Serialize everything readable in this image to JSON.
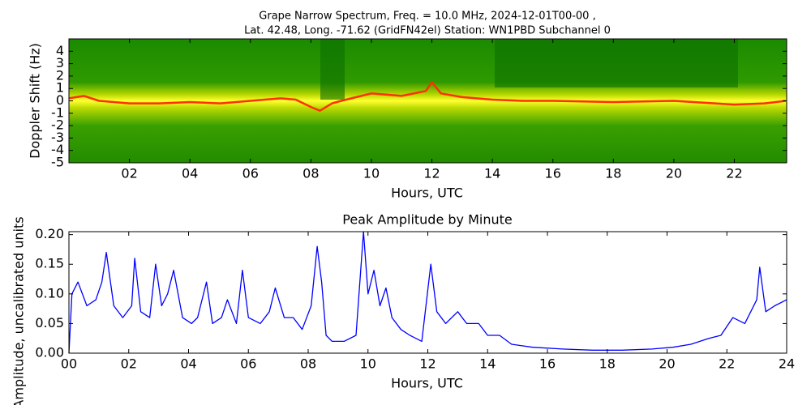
{
  "chart_data": [
    {
      "type": "spectrogram",
      "title": [
        "Grape Narrow Spectrum, Freq. = 10.0 MHz, 2024-12-01T00-00 ,",
        "Lat.  42.48, Long. -71.62 (GridFN42el) Station: WN1PBD Subchannel 0"
      ],
      "xlabel": "Hours, UTC",
      "ylabel": "Doppler Shift (Hz)",
      "xlim": [
        0,
        23.73
      ],
      "ylim": [
        -5,
        5
      ],
      "xticks": [
        {
          "value": 2,
          "label": "02"
        },
        {
          "value": 4,
          "label": "04"
        },
        {
          "value": 6,
          "label": "06"
        },
        {
          "value": 8,
          "label": "08"
        },
        {
          "value": 10,
          "label": "10"
        },
        {
          "value": 12,
          "label": "12"
        },
        {
          "value": 14,
          "label": "14"
        },
        {
          "value": 16,
          "label": "16"
        },
        {
          "value": 18,
          "label": "18"
        },
        {
          "value": 20,
          "label": "20"
        },
        {
          "value": 22,
          "label": "22"
        }
      ],
      "yticks": [
        -5,
        -4,
        -3,
        -2,
        -1,
        0,
        1,
        2,
        3,
        4
      ],
      "x": [
        0,
        0.5,
        1,
        2,
        3,
        4,
        5,
        6,
        7,
        7.5,
        8,
        8.3,
        8.7,
        9,
        10,
        11,
        11.8,
        12,
        12.3,
        13,
        14,
        15,
        16,
        18,
        20,
        22,
        23,
        23.7
      ],
      "values": [
        0.2,
        0.4,
        0.0,
        -0.2,
        -0.2,
        -0.1,
        -0.2,
        0.0,
        0.2,
        0.1,
        -0.5,
        -0.8,
        -0.2,
        0.0,
        0.6,
        0.4,
        0.8,
        1.5,
        0.6,
        0.3,
        0.1,
        0.0,
        0.0,
        -0.1,
        0.0,
        -0.3,
        -0.2,
        0.0
      ],
      "color": "#ff3000"
    },
    {
      "type": "line",
      "title": "Peak Amplitude by Minute",
      "xlabel": "Hours, UTC",
      "ylabel": "Amplitude, uncalibrated units",
      "xlim": [
        0,
        24
      ],
      "ylim": [
        0,
        0.205
      ],
      "xticks": [
        {
          "value": 0,
          "label": "00"
        },
        {
          "value": 2,
          "label": "02"
        },
        {
          "value": 4,
          "label": "04"
        },
        {
          "value": 6,
          "label": "06"
        },
        {
          "value": 8,
          "label": "08"
        },
        {
          "value": 10,
          "label": "10"
        },
        {
          "value": 12,
          "label": "12"
        },
        {
          "value": 14,
          "label": "14"
        },
        {
          "value": 16,
          "label": "16"
        },
        {
          "value": 18,
          "label": "18"
        },
        {
          "value": 20,
          "label": "20"
        },
        {
          "value": 22,
          "label": "22"
        },
        {
          "value": 24,
          "label": "24"
        }
      ],
      "yticks": [
        {
          "value": 0,
          "label": "0.00"
        },
        {
          "value": 0.05,
          "label": "0.05"
        },
        {
          "value": 0.1,
          "label": "0.10"
        },
        {
          "value": 0.15,
          "label": "0.15"
        },
        {
          "value": 0.2,
          "label": "0.20"
        }
      ],
      "x": [
        0,
        0.1,
        0.3,
        0.6,
        0.9,
        1.1,
        1.25,
        1.5,
        1.8,
        2.1,
        2.2,
        2.4,
        2.7,
        2.9,
        3.1,
        3.3,
        3.5,
        3.8,
        4.1,
        4.3,
        4.6,
        4.8,
        5.1,
        5.3,
        5.6,
        5.8,
        6.0,
        6.4,
        6.7,
        6.9,
        7.2,
        7.5,
        7.8,
        8.1,
        8.3,
        8.45,
        8.6,
        8.8,
        9.2,
        9.6,
        9.85,
        10.0,
        10.2,
        10.4,
        10.6,
        10.8,
        11.1,
        11.4,
        11.8,
        12.1,
        12.3,
        12.6,
        13.0,
        13.3,
        13.7,
        14.0,
        14.4,
        14.8,
        15.5,
        16.5,
        17.5,
        18.5,
        19.5,
        20.2,
        20.8,
        21.4,
        21.8,
        22.2,
        22.6,
        23.0,
        23.1,
        23.3,
        23.6,
        24
      ],
      "values": [
        0.0,
        0.1,
        0.12,
        0.08,
        0.09,
        0.12,
        0.17,
        0.08,
        0.06,
        0.08,
        0.16,
        0.07,
        0.06,
        0.15,
        0.08,
        0.1,
        0.14,
        0.06,
        0.05,
        0.06,
        0.12,
        0.05,
        0.06,
        0.09,
        0.05,
        0.14,
        0.06,
        0.05,
        0.07,
        0.11,
        0.06,
        0.06,
        0.04,
        0.08,
        0.18,
        0.12,
        0.03,
        0.02,
        0.02,
        0.03,
        0.205,
        0.1,
        0.14,
        0.08,
        0.11,
        0.06,
        0.04,
        0.03,
        0.02,
        0.15,
        0.07,
        0.05,
        0.07,
        0.05,
        0.05,
        0.03,
        0.03,
        0.015,
        0.01,
        0.007,
        0.005,
        0.005,
        0.007,
        0.01,
        0.015,
        0.025,
        0.03,
        0.06,
        0.05,
        0.09,
        0.145,
        0.07,
        0.08,
        0.09
      ],
      "color": "#0000ff"
    }
  ]
}
